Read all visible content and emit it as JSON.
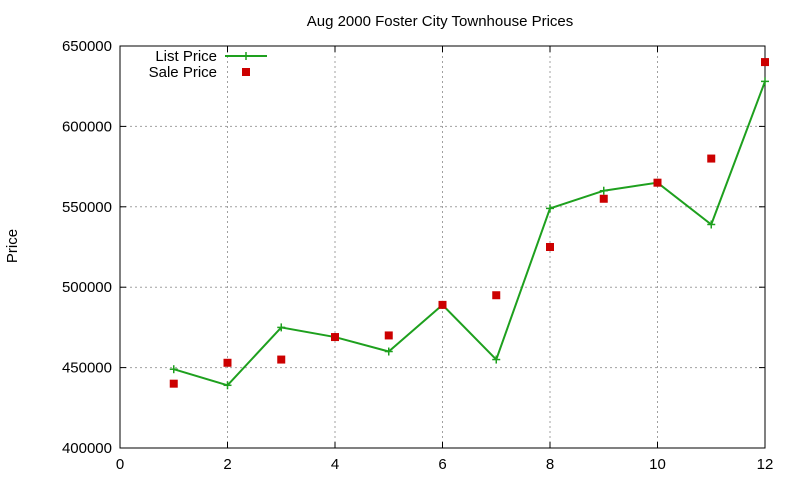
{
  "chart_data": {
    "type": "line",
    "title": "Aug 2000 Foster City Townhouse Prices",
    "xlabel": "",
    "ylabel": "Price",
    "xlim": [
      0,
      12
    ],
    "ylim": [
      400000,
      650000
    ],
    "x_ticks": [
      0,
      2,
      4,
      6,
      8,
      10,
      12
    ],
    "y_ticks": [
      400000,
      450000,
      500000,
      550000,
      600000,
      650000
    ],
    "x_tick_labels": [
      "0",
      "2",
      "4",
      "6",
      "8",
      "10",
      "12"
    ],
    "y_tick_labels": [
      "400000",
      "450000",
      "500000",
      "550000",
      "600000",
      "650000"
    ],
    "grid": true,
    "legend_position": "top-left",
    "series": [
      {
        "name": "List Price",
        "style": "line-with-plus-markers",
        "color": "#1ea01e",
        "x": [
          1,
          2,
          3,
          4,
          5,
          6,
          7,
          8,
          9,
          10,
          11,
          12
        ],
        "y": [
          449000,
          439000,
          475000,
          469000,
          460000,
          489000,
          455000,
          549000,
          560000,
          565000,
          539000,
          628000
        ]
      },
      {
        "name": "Sale Price",
        "style": "square-markers",
        "color": "#cc0000",
        "x": [
          1,
          2,
          3,
          4,
          5,
          6,
          7,
          8,
          9,
          10,
          11,
          12
        ],
        "y": [
          440000,
          453000,
          455000,
          469000,
          470000,
          489000,
          495000,
          525000,
          555000,
          565000,
          580000,
          640000
        ]
      }
    ]
  }
}
